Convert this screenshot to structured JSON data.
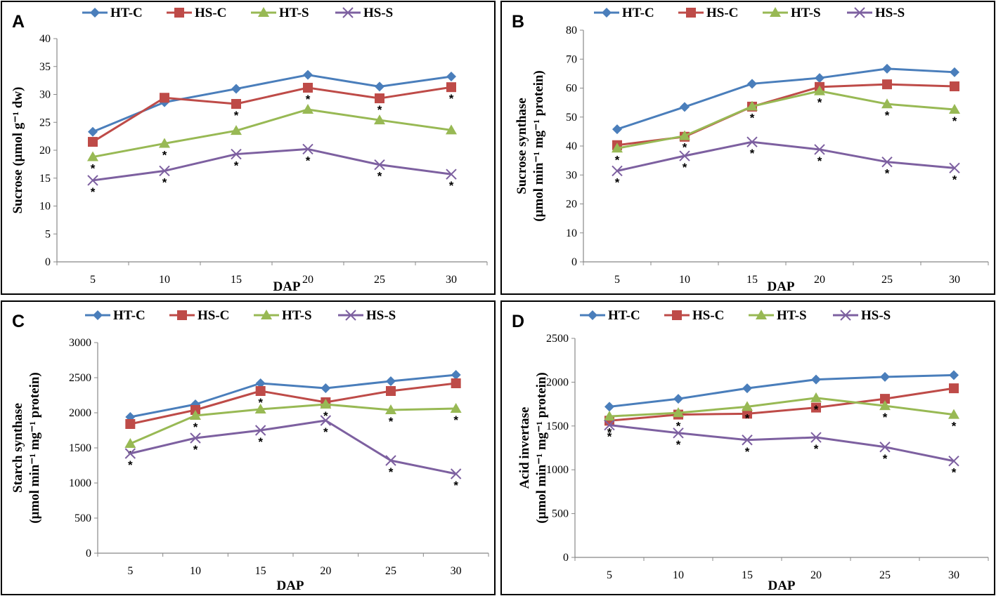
{
  "chart_data": [
    {
      "panel": "A",
      "type": "line",
      "title": "",
      "xlabel": "DAP",
      "ylabel": "Sucrose (μmol g⁻¹ dw)",
      "ylim": [
        0,
        40
      ],
      "ystep": 5,
      "x": [
        5,
        10,
        15,
        20,
        25,
        30
      ],
      "series": [
        {
          "name": "HT-C",
          "color": "#4A7EBB",
          "marker": "diamond",
          "values": [
            23.3,
            28.6,
            31.0,
            33.5,
            31.4,
            33.2
          ],
          "sig": [
            false,
            false,
            false,
            false,
            false,
            false
          ]
        },
        {
          "name": "HS-C",
          "color": "#BE4B48",
          "marker": "square",
          "values": [
            21.5,
            29.4,
            28.3,
            31.2,
            29.3,
            31.3
          ],
          "sig": [
            false,
            false,
            true,
            true,
            true,
            true
          ]
        },
        {
          "name": "HT-S",
          "color": "#98B954",
          "marker": "triangle",
          "values": [
            18.8,
            21.2,
            23.5,
            27.3,
            25.4,
            23.6
          ],
          "sig": [
            true,
            true,
            false,
            false,
            false,
            false
          ]
        },
        {
          "name": "HS-S",
          "color": "#7D60A0",
          "marker": "x",
          "values": [
            14.6,
            16.3,
            19.3,
            20.2,
            17.4,
            15.7
          ],
          "sig": [
            true,
            true,
            true,
            true,
            true,
            true
          ]
        }
      ]
    },
    {
      "panel": "B",
      "type": "line",
      "title": "",
      "xlabel": "DAP",
      "ylabel": "Sucrose synthase",
      "ylabel2": "(μmol min⁻¹ mg⁻¹ protein)",
      "ylim": [
        0,
        80
      ],
      "ystep": 10,
      "x": [
        5,
        10,
        15,
        20,
        25,
        30
      ],
      "series": [
        {
          "name": "HT-C",
          "color": "#4A7EBB",
          "marker": "diamond",
          "values": [
            45.8,
            53.5,
            61.5,
            63.5,
            66.7,
            65.5
          ],
          "sig": [
            false,
            false,
            false,
            false,
            false,
            false
          ]
        },
        {
          "name": "HS-C",
          "color": "#BE4B48",
          "marker": "square",
          "values": [
            40.3,
            43.2,
            53.6,
            60.4,
            61.3,
            60.6
          ],
          "sig": [
            false,
            false,
            false,
            false,
            false,
            false
          ]
        },
        {
          "name": "HT-S",
          "color": "#98B954",
          "marker": "triangle",
          "values": [
            39.2,
            43.5,
            53.7,
            59.0,
            54.5,
            52.6
          ],
          "sig": [
            true,
            true,
            true,
            true,
            true,
            true
          ]
        },
        {
          "name": "HS-S",
          "color": "#7D60A0",
          "marker": "x",
          "values": [
            31.4,
            36.6,
            41.4,
            38.8,
            34.5,
            32.4
          ],
          "sig": [
            true,
            true,
            true,
            true,
            true,
            true
          ]
        }
      ]
    },
    {
      "panel": "C",
      "type": "line",
      "title": "",
      "xlabel": "DAP",
      "ylabel": "Starch synthase",
      "ylabel2": "(μmol min⁻¹ mg⁻¹ protein)",
      "ylim": [
        0,
        3000
      ],
      "ystep": 500,
      "x": [
        5,
        10,
        15,
        20,
        25,
        30
      ],
      "series": [
        {
          "name": "HT-C",
          "color": "#4A7EBB",
          "marker": "diamond",
          "values": [
            1940,
            2120,
            2420,
            2350,
            2450,
            2540
          ],
          "sig": [
            false,
            false,
            false,
            false,
            false,
            false
          ]
        },
        {
          "name": "HS-C",
          "color": "#BE4B48",
          "marker": "square",
          "values": [
            1840,
            2040,
            2310,
            2150,
            2310,
            2420
          ],
          "sig": [
            false,
            false,
            true,
            false,
            false,
            false
          ]
        },
        {
          "name": "HT-S",
          "color": "#98B954",
          "marker": "triangle",
          "values": [
            1560,
            1960,
            2050,
            2120,
            2040,
            2060
          ],
          "sig": [
            true,
            true,
            false,
            true,
            true,
            true
          ]
        },
        {
          "name": "HS-S",
          "color": "#7D60A0",
          "marker": "x",
          "values": [
            1420,
            1640,
            1750,
            1890,
            1320,
            1130
          ],
          "sig": [
            true,
            true,
            true,
            true,
            true,
            true
          ]
        }
      ]
    },
    {
      "panel": "D",
      "type": "line",
      "title": "",
      "xlabel": "DAP",
      "ylabel": "Acid invertase",
      "ylabel2": "(μmol min⁻¹ mg⁻¹ protein)",
      "ylim": [
        0,
        2500
      ],
      "ystep": 500,
      "x": [
        5,
        10,
        15,
        20,
        25,
        30
      ],
      "series": [
        {
          "name": "HT-C",
          "color": "#4A7EBB",
          "marker": "diamond",
          "values": [
            1720,
            1810,
            1930,
            2030,
            2060,
            2080
          ],
          "sig": [
            false,
            false,
            false,
            false,
            false,
            false
          ]
        },
        {
          "name": "HS-C",
          "color": "#BE4B48",
          "marker": "square",
          "values": [
            1560,
            1630,
            1640,
            1710,
            1810,
            1930
          ],
          "sig": [
            true,
            true,
            false,
            false,
            false,
            false
          ]
        },
        {
          "name": "HT-S",
          "color": "#98B954",
          "marker": "triangle",
          "values": [
            1610,
            1650,
            1720,
            1820,
            1730,
            1630
          ],
          "sig": [
            false,
            false,
            true,
            true,
            true,
            true
          ]
        },
        {
          "name": "HS-S",
          "color": "#7D60A0",
          "marker": "x",
          "values": [
            1510,
            1420,
            1340,
            1370,
            1260,
            1100
          ],
          "sig": [
            true,
            true,
            true,
            true,
            true,
            true
          ]
        }
      ]
    }
  ],
  "significance_marker": "*"
}
